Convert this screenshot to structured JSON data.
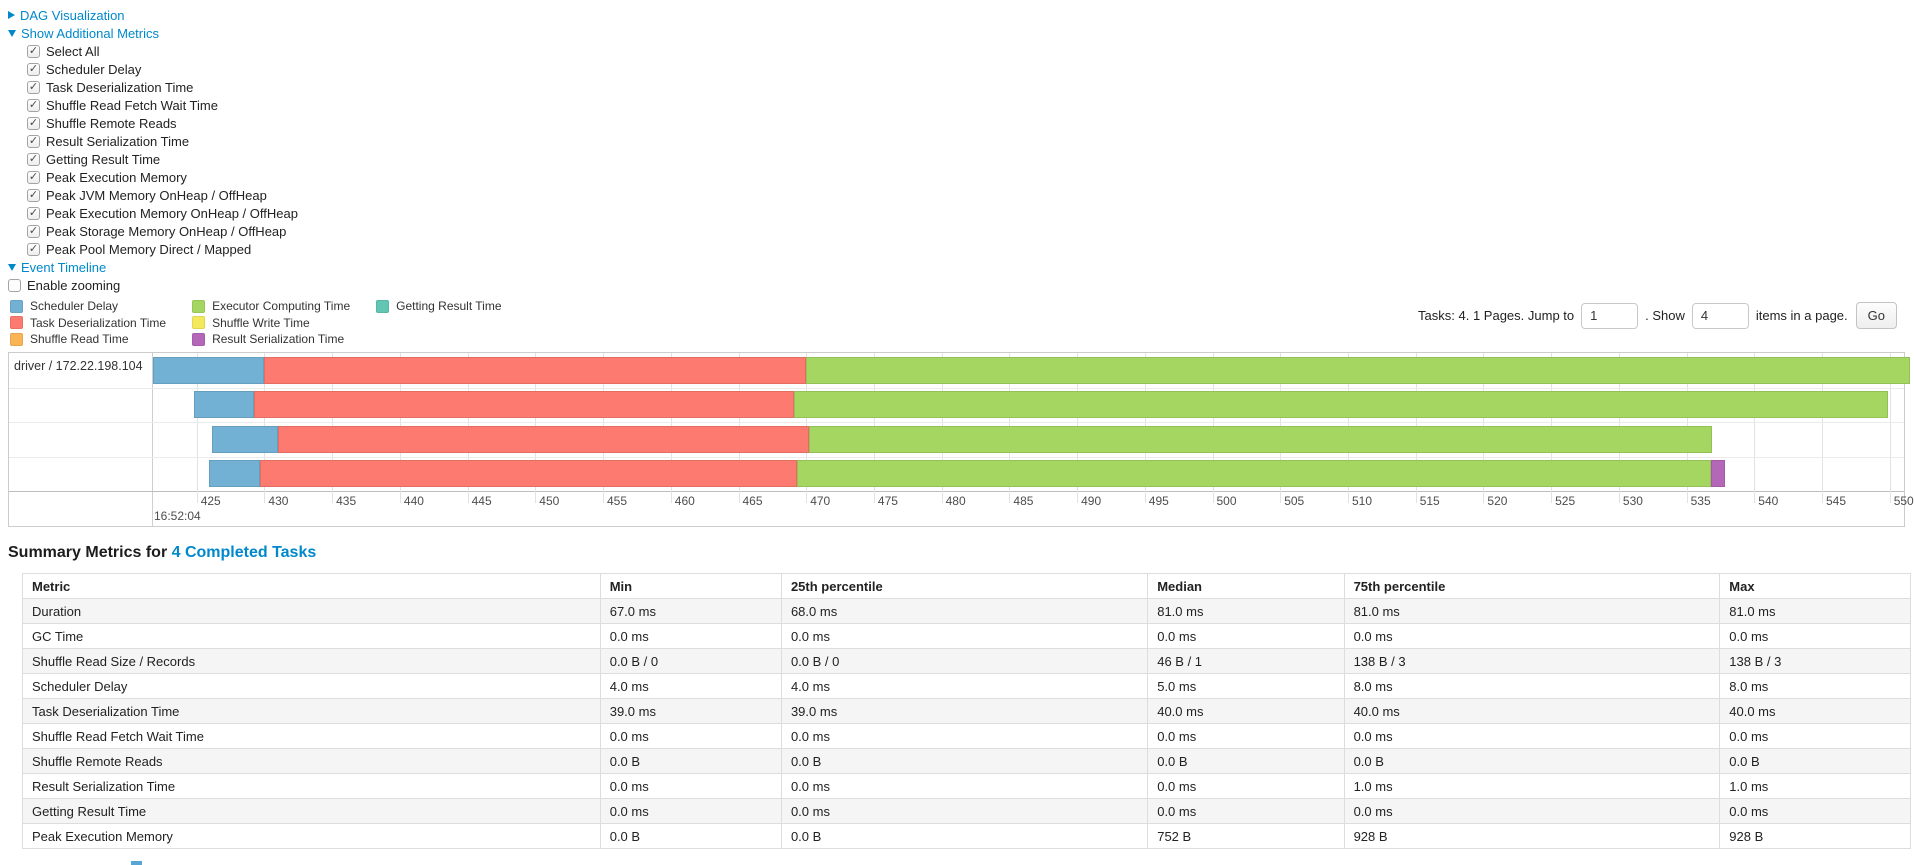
{
  "sections": {
    "dag": {
      "label": "DAG Visualization"
    },
    "metrics": {
      "label": "Show Additional Metrics",
      "items": [
        {
          "label": "Select All",
          "checked": true
        },
        {
          "label": "Scheduler Delay",
          "checked": true
        },
        {
          "label": "Task Deserialization Time",
          "checked": true
        },
        {
          "label": "Shuffle Read Fetch Wait Time",
          "checked": true
        },
        {
          "label": "Shuffle Remote Reads",
          "checked": true
        },
        {
          "label": "Result Serialization Time",
          "checked": true
        },
        {
          "label": "Getting Result Time",
          "checked": true
        },
        {
          "label": "Peak Execution Memory",
          "checked": true
        },
        {
          "label": "Peak JVM Memory OnHeap / OffHeap",
          "checked": true
        },
        {
          "label": "Peak Execution Memory OnHeap / OffHeap",
          "checked": true
        },
        {
          "label": "Peak Storage Memory OnHeap / OffHeap",
          "checked": true
        },
        {
          "label": "Peak Pool Memory Direct / Mapped",
          "checked": true
        }
      ]
    },
    "event_timeline": {
      "label": "Event Timeline"
    },
    "enable_zooming": {
      "label": "Enable zooming",
      "checked": false
    }
  },
  "pagination": {
    "prefix": "Tasks: 4. 1 Pages. Jump to",
    "jump_value": "1",
    "between": ". Show",
    "show_value": "4",
    "suffix": "items in a page.",
    "go_label": "Go"
  },
  "chart_data": {
    "type": "timeline",
    "group_label": "driver / 172.22.198.104",
    "axis_min": 421.7,
    "axis_max": 551.2,
    "axis_unit": "ms",
    "axis_start_label": "16:52:04",
    "ticks": [
      425,
      430,
      435,
      440,
      445,
      450,
      455,
      460,
      465,
      470,
      475,
      480,
      485,
      490,
      495,
      500,
      505,
      510,
      515,
      520,
      525,
      530,
      535,
      540,
      545,
      550
    ],
    "colors": {
      "scheduler_delay": "#72b0d4",
      "task_deserialization": "#fc7a6f",
      "shuffle_read": "#fbb357",
      "executor_computing": "#a5d661",
      "shuffle_write": "#f4e95b",
      "result_serialization": "#b467b8",
      "getting_result": "#61c6b3"
    },
    "legend": [
      {
        "label": "Scheduler Delay",
        "color_key": "scheduler_delay"
      },
      {
        "label": "Task Deserialization Time",
        "color_key": "task_deserialization"
      },
      {
        "label": "Shuffle Read Time",
        "color_key": "shuffle_read"
      },
      {
        "label": "Executor Computing Time",
        "color_key": "executor_computing"
      },
      {
        "label": "Shuffle Write Time",
        "color_key": "shuffle_write"
      },
      {
        "label": "Result Serialization Time",
        "color_key": "result_serialization"
      },
      {
        "label": "Getting Result Time",
        "color_key": "getting_result"
      }
    ],
    "tasks": [
      {
        "start": 421.8,
        "segments": [
          {
            "color_key": "scheduler_delay",
            "ms": 8.2
          },
          {
            "color_key": "task_deserialization",
            "ms": 40.0
          },
          {
            "color_key": "executor_computing",
            "ms": 81.5
          }
        ]
      },
      {
        "start": 424.8,
        "segments": [
          {
            "color_key": "scheduler_delay",
            "ms": 4.4
          },
          {
            "color_key": "task_deserialization",
            "ms": 39.9
          },
          {
            "color_key": "executor_computing",
            "ms": 80.8
          }
        ]
      },
      {
        "start": 426.1,
        "segments": [
          {
            "color_key": "scheduler_delay",
            "ms": 4.9
          },
          {
            "color_key": "task_deserialization",
            "ms": 39.2
          },
          {
            "color_key": "executor_computing",
            "ms": 66.7
          }
        ]
      },
      {
        "start": 425.9,
        "segments": [
          {
            "color_key": "scheduler_delay",
            "ms": 3.8
          },
          {
            "color_key": "task_deserialization",
            "ms": 39.6
          },
          {
            "color_key": "executor_computing",
            "ms": 67.5
          },
          {
            "color_key": "result_serialization",
            "ms": 1.0
          }
        ]
      }
    ]
  },
  "summary": {
    "title_prefix": "Summary Metrics for ",
    "title_link": "4 Completed Tasks",
    "table": {
      "headers": [
        "Metric",
        "Min",
        "25th percentile",
        "Median",
        "75th percentile",
        "Max"
      ],
      "rows": [
        [
          "Duration",
          "67.0 ms",
          "68.0 ms",
          "81.0 ms",
          "81.0 ms",
          "81.0 ms"
        ],
        [
          "GC Time",
          "0.0 ms",
          "0.0 ms",
          "0.0 ms",
          "0.0 ms",
          "0.0 ms"
        ],
        [
          "Shuffle Read Size / Records",
          "0.0 B / 0",
          "0.0 B / 0",
          "46 B / 1",
          "138 B / 3",
          "138 B / 3"
        ],
        [
          "Scheduler Delay",
          "4.0 ms",
          "4.0 ms",
          "5.0 ms",
          "8.0 ms",
          "8.0 ms"
        ],
        [
          "Task Deserialization Time",
          "39.0 ms",
          "39.0 ms",
          "40.0 ms",
          "40.0 ms",
          "40.0 ms"
        ],
        [
          "Shuffle Read Fetch Wait Time",
          "0.0 ms",
          "0.0 ms",
          "0.0 ms",
          "0.0 ms",
          "0.0 ms"
        ],
        [
          "Shuffle Remote Reads",
          "0.0 B",
          "0.0 B",
          "0.0 B",
          "0.0 B",
          "0.0 B"
        ],
        [
          "Result Serialization Time",
          "0.0 ms",
          "0.0 ms",
          "0.0 ms",
          "1.0 ms",
          "1.0 ms"
        ],
        [
          "Getting Result Time",
          "0.0 ms",
          "0.0 ms",
          "0.0 ms",
          "0.0 ms",
          "0.0 ms"
        ],
        [
          "Peak Execution Memory",
          "0.0 B",
          "0.0 B",
          "752 B",
          "928 B",
          "928 B"
        ]
      ]
    }
  }
}
